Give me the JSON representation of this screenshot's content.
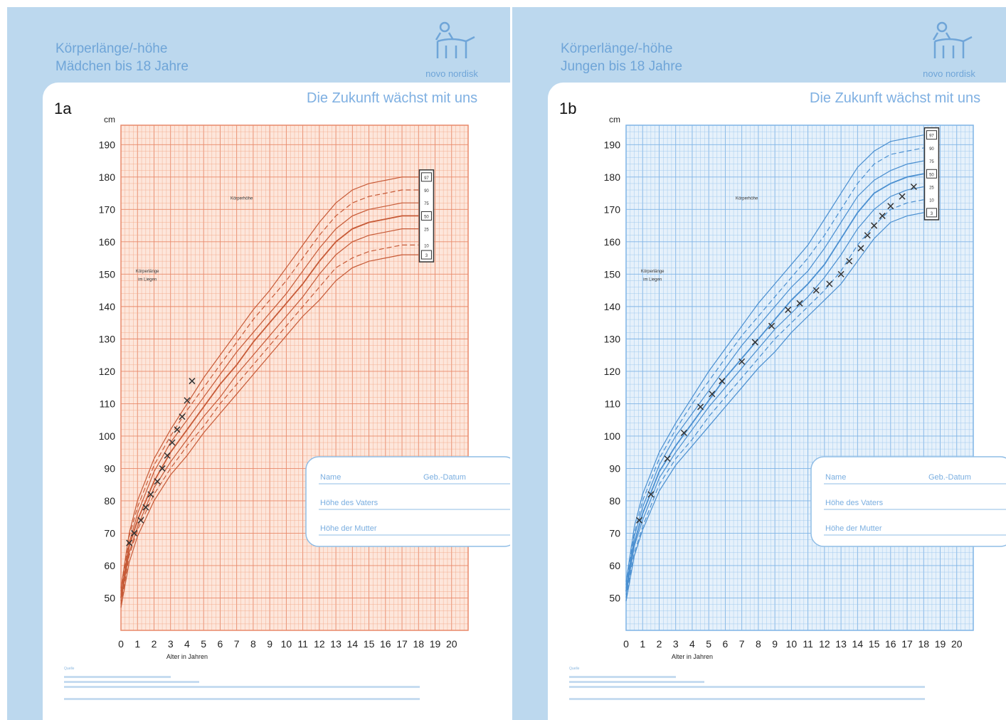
{
  "panels": [
    {
      "id": "a",
      "figure_label": "1a",
      "header_line1": "Körperlänge/-höhe",
      "header_line2": "Mädchen bis 18 Jahre",
      "brand": "novo nordisk",
      "slogan": "Die Zukunft wächst mit uns",
      "form_name": "Name",
      "form_dob": "Geb.-Datum",
      "form_father": "Höhe des Vaters",
      "form_mother": "Höhe der Mutter",
      "source_title": "Quelle",
      "color_grid": "#f2a98a",
      "color_grid_major": "#e8896a",
      "color_curve": "#c65a37",
      "color_bg": "#fde6db"
    },
    {
      "id": "b",
      "figure_label": "1b",
      "header_line1": "Körperlänge/-höhe",
      "header_line2": "Jungen bis 18 Jahre",
      "brand": "novo nordisk",
      "slogan": "Die Zukunft wächst mit uns",
      "form_name": "Name",
      "form_dob": "Geb.-Datum",
      "form_father": "Höhe des Vaters",
      "form_mother": "Höhe der Mutter",
      "source_title": "Quelle",
      "color_grid": "#9cc6ec",
      "color_grid_major": "#7fb4e6",
      "color_curve": "#4a8fd0",
      "color_bg": "#e6f1fb"
    }
  ],
  "chart_data": [
    {
      "type": "line",
      "ylabel": "cm",
      "xlabel": "Alter in Jahren",
      "xlim": [
        0,
        21
      ],
      "ylim": [
        40,
        196
      ],
      "x_ticks": [
        0,
        1,
        2,
        3,
        4,
        5,
        6,
        7,
        8,
        9,
        10,
        11,
        12,
        13,
        14,
        15,
        16,
        17,
        18,
        19,
        20
      ],
      "y_ticks": [
        50,
        60,
        70,
        80,
        90,
        100,
        110,
        120,
        130,
        140,
        150,
        160,
        170,
        180,
        190
      ],
      "label_standing": "Körperhöhe",
      "label_lying_1": "Körperlänge",
      "label_lying_2": "im Liegen",
      "percentiles": [
        "97",
        "90",
        "75",
        "50",
        "25",
        "10",
        "3"
      ],
      "curve_x": [
        0,
        0.5,
        1,
        2,
        3,
        4,
        5,
        6,
        7,
        8,
        9,
        10,
        11,
        12,
        13,
        14,
        15,
        16,
        17,
        18
      ],
      "series": [
        {
          "name": "97",
          "values": [
            53,
            70,
            80,
            93,
            102,
            110,
            118,
            125,
            132,
            139,
            145,
            152,
            159,
            166,
            172,
            176,
            178,
            179,
            180,
            180
          ]
        },
        {
          "name": "90",
          "values": [
            52,
            69,
            78,
            91,
            100,
            108,
            115,
            122,
            129,
            136,
            142,
            148,
            155,
            162,
            168,
            172,
            174,
            175,
            176,
            176
          ]
        },
        {
          "name": "75",
          "values": [
            51,
            67,
            76,
            89,
            98,
            105,
            112,
            119,
            126,
            132,
            138,
            144,
            151,
            158,
            164,
            168,
            170,
            171,
            172,
            172
          ]
        },
        {
          "name": "50",
          "values": [
            50,
            66,
            74,
            86,
            95,
            102,
            109,
            116,
            122,
            129,
            135,
            141,
            147,
            154,
            160,
            164,
            166,
            167,
            168,
            168
          ]
        },
        {
          "name": "25",
          "values": [
            49,
            64,
            72,
            84,
            92,
            99,
            106,
            112,
            119,
            125,
            131,
            137,
            143,
            150,
            156,
            160,
            162,
            163,
            164,
            164
          ]
        },
        {
          "name": "10",
          "values": [
            48,
            63,
            71,
            82,
            90,
            97,
            103,
            110,
            116,
            122,
            128,
            134,
            140,
            146,
            152,
            155,
            157,
            158,
            159,
            159
          ]
        },
        {
          "name": "3",
          "values": [
            47,
            61,
            69,
            80,
            88,
            94,
            101,
            107,
            113,
            119,
            125,
            131,
            137,
            142,
            148,
            152,
            154,
            155,
            156,
            156
          ]
        }
      ],
      "measurements": {
        "x": [
          0.5,
          0.8,
          1.2,
          1.5,
          1.8,
          2.2,
          2.5,
          2.8,
          3.1,
          3.4,
          3.7,
          4.0,
          4.3
        ],
        "y": [
          67,
          70,
          74,
          78,
          82,
          86,
          90,
          94,
          98,
          102,
          106,
          111,
          117
        ]
      }
    },
    {
      "type": "line",
      "ylabel": "cm",
      "xlabel": "Alter in Jahren",
      "xlim": [
        0,
        21
      ],
      "ylim": [
        40,
        196
      ],
      "x_ticks": [
        0,
        1,
        2,
        3,
        4,
        5,
        6,
        7,
        8,
        9,
        10,
        11,
        12,
        13,
        14,
        15,
        16,
        17,
        18,
        19,
        20
      ],
      "y_ticks": [
        50,
        60,
        70,
        80,
        90,
        100,
        110,
        120,
        130,
        140,
        150,
        160,
        170,
        180,
        190
      ],
      "label_standing": "Körperhöhe",
      "label_lying_1": "Körperlänge",
      "label_lying_2": "im Liegen",
      "percentiles": [
        "97",
        "90",
        "75",
        "50",
        "25",
        "10",
        "3"
      ],
      "curve_x": [
        0,
        0.5,
        1,
        2,
        3,
        4,
        5,
        6,
        7,
        8,
        9,
        10,
        11,
        12,
        13,
        14,
        15,
        16,
        17,
        18
      ],
      "series": [
        {
          "name": "97",
          "values": [
            55,
            72,
            82,
            95,
            104,
            112,
            120,
            127,
            134,
            141,
            147,
            153,
            159,
            167,
            175,
            183,
            188,
            191,
            192,
            193
          ]
        },
        {
          "name": "90",
          "values": [
            54,
            70,
            80,
            93,
            102,
            110,
            117,
            124,
            131,
            137,
            143,
            149,
            155,
            162,
            170,
            178,
            184,
            187,
            188,
            189
          ]
        },
        {
          "name": "75",
          "values": [
            53,
            69,
            78,
            91,
            100,
            107,
            114,
            121,
            128,
            134,
            140,
            146,
            151,
            158,
            166,
            174,
            179,
            182,
            184,
            185
          ]
        },
        {
          "name": "50",
          "values": [
            52,
            67,
            76,
            89,
            97,
            104,
            111,
            118,
            124,
            130,
            136,
            142,
            147,
            153,
            161,
            169,
            175,
            178,
            180,
            181
          ]
        },
        {
          "name": "25",
          "values": [
            51,
            66,
            74,
            87,
            95,
            102,
            109,
            115,
            121,
            127,
            133,
            138,
            143,
            149,
            156,
            164,
            170,
            174,
            176,
            177
          ]
        },
        {
          "name": "10",
          "values": [
            50,
            64,
            72,
            85,
            93,
            99,
            106,
            112,
            118,
            124,
            130,
            135,
            140,
            145,
            151,
            159,
            165,
            170,
            172,
            173
          ]
        },
        {
          "name": "3",
          "values": [
            49,
            63,
            71,
            83,
            91,
            97,
            103,
            109,
            115,
            121,
            126,
            132,
            137,
            142,
            147,
            154,
            161,
            166,
            168,
            169
          ]
        }
      ],
      "measurements": {
        "x": [
          0.8,
          1.5,
          2.5,
          3.5,
          4.5,
          5.2,
          5.8,
          7.0,
          7.8,
          8.8,
          9.8,
          10.5,
          11.5,
          12.3,
          13.0,
          13.5,
          14.2,
          14.6,
          15.0,
          15.5,
          16.0,
          16.7,
          17.4
        ],
        "y": [
          74,
          82,
          93,
          101,
          109,
          113,
          117,
          123,
          129,
          134,
          139,
          141,
          145,
          147,
          150,
          154,
          158,
          162,
          165,
          168,
          171,
          174,
          177
        ]
      }
    }
  ]
}
